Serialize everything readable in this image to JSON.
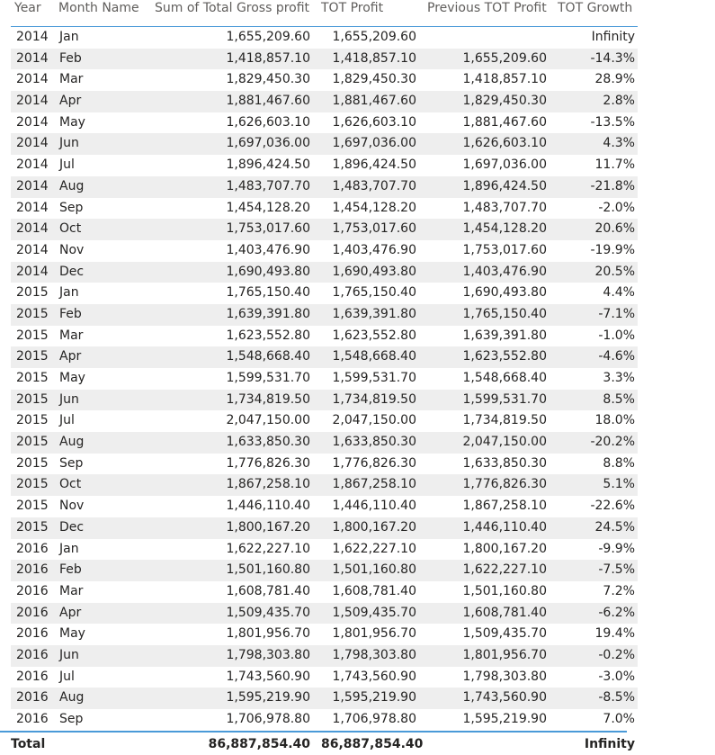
{
  "columns": {
    "year": "Year",
    "month": "Month Name",
    "gross": "Sum of Total Gross profit",
    "tot": "TOT Profit",
    "prev": "Previous TOT Profit",
    "growth": "TOT Growth"
  },
  "rows": [
    {
      "year": "2014",
      "month": "Jan",
      "gross": "1,655,209.60",
      "tot": "1,655,209.60",
      "prev": "",
      "growth": "Infinity"
    },
    {
      "year": "2014",
      "month": "Feb",
      "gross": "1,418,857.10",
      "tot": "1,418,857.10",
      "prev": "1,655,209.60",
      "growth": "-14.3%"
    },
    {
      "year": "2014",
      "month": "Mar",
      "gross": "1,829,450.30",
      "tot": "1,829,450.30",
      "prev": "1,418,857.10",
      "growth": "28.9%"
    },
    {
      "year": "2014",
      "month": "Apr",
      "gross": "1,881,467.60",
      "tot": "1,881,467.60",
      "prev": "1,829,450.30",
      "growth": "2.8%"
    },
    {
      "year": "2014",
      "month": "May",
      "gross": "1,626,603.10",
      "tot": "1,626,603.10",
      "prev": "1,881,467.60",
      "growth": "-13.5%"
    },
    {
      "year": "2014",
      "month": "Jun",
      "gross": "1,697,036.00",
      "tot": "1,697,036.00",
      "prev": "1,626,603.10",
      "growth": "4.3%"
    },
    {
      "year": "2014",
      "month": "Jul",
      "gross": "1,896,424.50",
      "tot": "1,896,424.50",
      "prev": "1,697,036.00",
      "growth": "11.7%"
    },
    {
      "year": "2014",
      "month": "Aug",
      "gross": "1,483,707.70",
      "tot": "1,483,707.70",
      "prev": "1,896,424.50",
      "growth": "-21.8%"
    },
    {
      "year": "2014",
      "month": "Sep",
      "gross": "1,454,128.20",
      "tot": "1,454,128.20",
      "prev": "1,483,707.70",
      "growth": "-2.0%"
    },
    {
      "year": "2014",
      "month": "Oct",
      "gross": "1,753,017.60",
      "tot": "1,753,017.60",
      "prev": "1,454,128.20",
      "growth": "20.6%"
    },
    {
      "year": "2014",
      "month": "Nov",
      "gross": "1,403,476.90",
      "tot": "1,403,476.90",
      "prev": "1,753,017.60",
      "growth": "-19.9%"
    },
    {
      "year": "2014",
      "month": "Dec",
      "gross": "1,690,493.80",
      "tot": "1,690,493.80",
      "prev": "1,403,476.90",
      "growth": "20.5%"
    },
    {
      "year": "2015",
      "month": "Jan",
      "gross": "1,765,150.40",
      "tot": "1,765,150.40",
      "prev": "1,690,493.80",
      "growth": "4.4%"
    },
    {
      "year": "2015",
      "month": "Feb",
      "gross": "1,639,391.80",
      "tot": "1,639,391.80",
      "prev": "1,765,150.40",
      "growth": "-7.1%"
    },
    {
      "year": "2015",
      "month": "Mar",
      "gross": "1,623,552.80",
      "tot": "1,623,552.80",
      "prev": "1,639,391.80",
      "growth": "-1.0%"
    },
    {
      "year": "2015",
      "month": "Apr",
      "gross": "1,548,668.40",
      "tot": "1,548,668.40",
      "prev": "1,623,552.80",
      "growth": "-4.6%"
    },
    {
      "year": "2015",
      "month": "May",
      "gross": "1,599,531.70",
      "tot": "1,599,531.70",
      "prev": "1,548,668.40",
      "growth": "3.3%"
    },
    {
      "year": "2015",
      "month": "Jun",
      "gross": "1,734,819.50",
      "tot": "1,734,819.50",
      "prev": "1,599,531.70",
      "growth": "8.5%"
    },
    {
      "year": "2015",
      "month": "Jul",
      "gross": "2,047,150.00",
      "tot": "2,047,150.00",
      "prev": "1,734,819.50",
      "growth": "18.0%"
    },
    {
      "year": "2015",
      "month": "Aug",
      "gross": "1,633,850.30",
      "tot": "1,633,850.30",
      "prev": "2,047,150.00",
      "growth": "-20.2%"
    },
    {
      "year": "2015",
      "month": "Sep",
      "gross": "1,776,826.30",
      "tot": "1,776,826.30",
      "prev": "1,633,850.30",
      "growth": "8.8%"
    },
    {
      "year": "2015",
      "month": "Oct",
      "gross": "1,867,258.10",
      "tot": "1,867,258.10",
      "prev": "1,776,826.30",
      "growth": "5.1%"
    },
    {
      "year": "2015",
      "month": "Nov",
      "gross": "1,446,110.40",
      "tot": "1,446,110.40",
      "prev": "1,867,258.10",
      "growth": "-22.6%"
    },
    {
      "year": "2015",
      "month": "Dec",
      "gross": "1,800,167.20",
      "tot": "1,800,167.20",
      "prev": "1,446,110.40",
      "growth": "24.5%"
    },
    {
      "year": "2016",
      "month": "Jan",
      "gross": "1,622,227.10",
      "tot": "1,622,227.10",
      "prev": "1,800,167.20",
      "growth": "-9.9%"
    },
    {
      "year": "2016",
      "month": "Feb",
      "gross": "1,501,160.80",
      "tot": "1,501,160.80",
      "prev": "1,622,227.10",
      "growth": "-7.5%"
    },
    {
      "year": "2016",
      "month": "Mar",
      "gross": "1,608,781.40",
      "tot": "1,608,781.40",
      "prev": "1,501,160.80",
      "growth": "7.2%"
    },
    {
      "year": "2016",
      "month": "Apr",
      "gross": "1,509,435.70",
      "tot": "1,509,435.70",
      "prev": "1,608,781.40",
      "growth": "-6.2%"
    },
    {
      "year": "2016",
      "month": "May",
      "gross": "1,801,956.70",
      "tot": "1,801,956.70",
      "prev": "1,509,435.70",
      "growth": "19.4%"
    },
    {
      "year": "2016",
      "month": "Jun",
      "gross": "1,798,303.80",
      "tot": "1,798,303.80",
      "prev": "1,801,956.70",
      "growth": "-0.2%"
    },
    {
      "year": "2016",
      "month": "Jul",
      "gross": "1,743,560.90",
      "tot": "1,743,560.90",
      "prev": "1,798,303.80",
      "growth": "-3.0%"
    },
    {
      "year": "2016",
      "month": "Aug",
      "gross": "1,595,219.90",
      "tot": "1,595,219.90",
      "prev": "1,743,560.90",
      "growth": "-8.5%"
    },
    {
      "year": "2016",
      "month": "Sep",
      "gross": "1,706,978.80",
      "tot": "1,706,978.80",
      "prev": "1,595,219.90",
      "growth": "7.0%"
    }
  ],
  "total": {
    "label": "Total",
    "gross": "86,887,854.40",
    "tot": "86,887,854.40",
    "growth": "Infinity"
  },
  "colors": {
    "accent": "#4a9ad8",
    "band": "#eeeeee",
    "header_text": "#605e5c"
  }
}
